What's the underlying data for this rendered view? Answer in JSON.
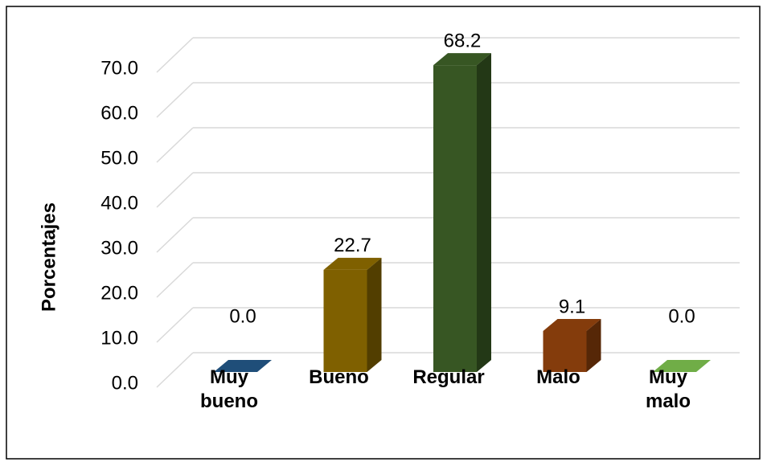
{
  "chart_data": {
    "type": "bar3d",
    "y_label": "Porcentajes",
    "categories": [
      "Muy bueno",
      "Bueno",
      "Regular",
      "Malo",
      "Muy malo"
    ],
    "values": [
      0,
      22.7,
      68.2,
      9.1,
      0
    ],
    "value_labels": [
      "0.0",
      "22.7",
      "68.2",
      "9.1",
      "0.0"
    ],
    "colors": [
      "#1f4e79",
      "#7f6000",
      "#375623",
      "#843c0c",
      "#70ad47"
    ],
    "ylim": [
      0,
      70
    ],
    "yticks": [
      {
        "value": 0,
        "label": "0.0"
      },
      {
        "value": 10,
        "label": "10.0"
      },
      {
        "value": 20,
        "label": "20.0"
      },
      {
        "value": 30,
        "label": "30.0"
      },
      {
        "value": 40,
        "label": "40.0"
      },
      {
        "value": 50,
        "label": "50.0"
      },
      {
        "value": 60,
        "label": "60.0"
      },
      {
        "value": 70,
        "label": "70.0"
      }
    ],
    "grid": true
  }
}
